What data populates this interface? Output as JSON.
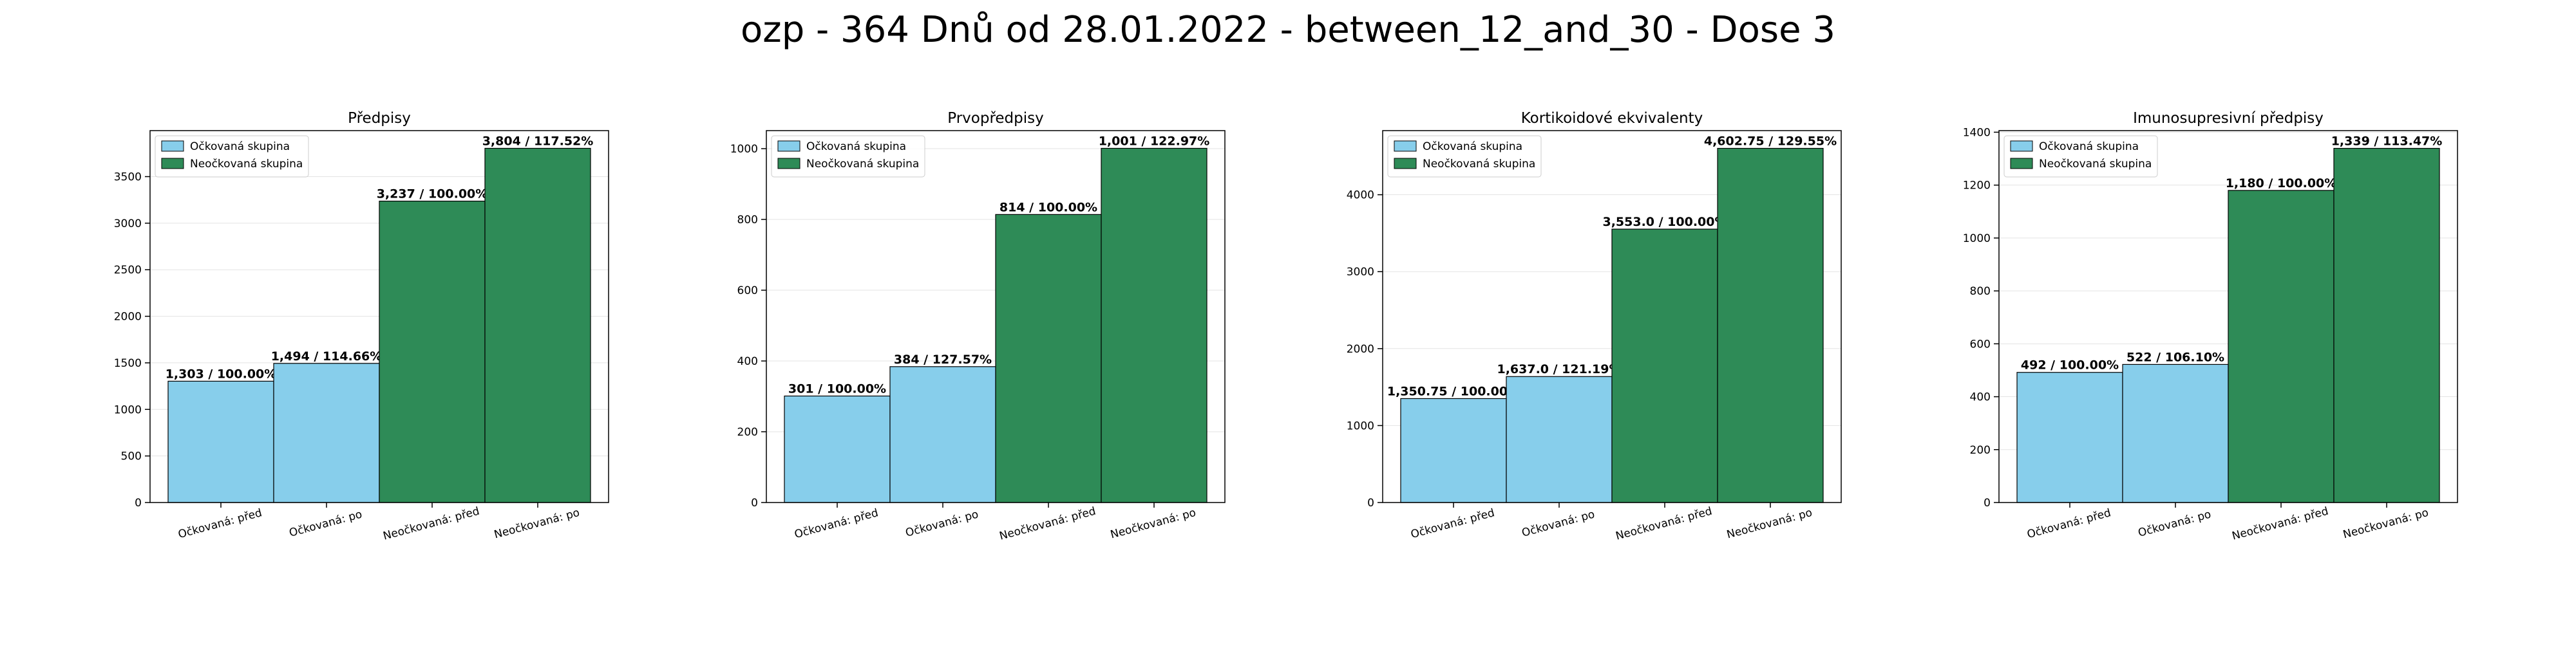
{
  "figure": {
    "title": "ozp - 364 Dnů od 28.01.2022 - between_12_and_30 - Dose 3"
  },
  "colors": {
    "vaccinated": "#87ceeb",
    "unvaccinated": "#2e8b57"
  },
  "chart_data": [
    {
      "type": "bar",
      "title": "Předpisy",
      "categories": [
        "Očkovaná: před",
        "Očkovaná: po",
        "Neočkovaná: před",
        "Neočkovaná: po"
      ],
      "values": [
        1303,
        1494,
        3237,
        3804
      ],
      "bar_labels": [
        "1,303 / 100.00%",
        "1,494 / 114.66%",
        "3,237 / 100.00%",
        "3,804 / 117.52%"
      ],
      "groups": [
        "vaccinated",
        "vaccinated",
        "unvaccinated",
        "unvaccinated"
      ],
      "legend": [
        "Očkovaná skupina",
        "Neočkovaná skupina"
      ],
      "legend_position": "upper-left",
      "ylim": [
        0,
        3994
      ],
      "yticks": [
        0,
        500,
        1000,
        1500,
        2000,
        2500,
        3000,
        3500
      ],
      "grid": "y"
    },
    {
      "type": "bar",
      "title": "Prvopředpisy",
      "categories": [
        "Očkovaná: před",
        "Očkovaná: po",
        "Neočkovaná: před",
        "Neočkovaná: po"
      ],
      "values": [
        301,
        384,
        814,
        1001
      ],
      "bar_labels": [
        "301 / 100.00%",
        "384 / 127.57%",
        "814 / 100.00%",
        "1,001 / 122.97%"
      ],
      "groups": [
        "vaccinated",
        "vaccinated",
        "unvaccinated",
        "unvaccinated"
      ],
      "legend": [
        "Očkovaná skupina",
        "Neočkovaná skupina"
      ],
      "legend_position": "upper-left",
      "ylim": [
        0,
        1051
      ],
      "yticks": [
        0,
        200,
        400,
        600,
        800,
        1000
      ],
      "grid": "y"
    },
    {
      "type": "bar",
      "title": "Kortikoidové ekvivalenty",
      "categories": [
        "Očkovaná: před",
        "Očkovaná: po",
        "Neočkovaná: před",
        "Neočkovaná: po"
      ],
      "values": [
        1350.75,
        1637.0,
        3553.0,
        4602.75
      ],
      "bar_labels": [
        "1,350.75 / 100.00%",
        "1,637.0 / 121.19%",
        "3,553.0 / 100.00%",
        "4,602.75 / 129.55%"
      ],
      "groups": [
        "vaccinated",
        "vaccinated",
        "unvaccinated",
        "unvaccinated"
      ],
      "legend": [
        "Očkovaná skupina",
        "Neočkovaná skupina"
      ],
      "legend_position": "upper-left",
      "ylim": [
        0,
        4833
      ],
      "yticks": [
        0,
        1000,
        2000,
        3000,
        4000
      ],
      "grid": "y"
    },
    {
      "type": "bar",
      "title": "Imunosupresivní předpisy",
      "categories": [
        "Očkovaná: před",
        "Očkovaná: po",
        "Neočkovaná: před",
        "Neočkovaná: po"
      ],
      "values": [
        492,
        522,
        1180,
        1339
      ],
      "bar_labels": [
        "492 / 100.00%",
        "522 / 106.10%",
        "1,180 / 100.00%",
        "1,339 / 113.47%"
      ],
      "groups": [
        "vaccinated",
        "vaccinated",
        "unvaccinated",
        "unvaccinated"
      ],
      "legend": [
        "Očkovaná skupina",
        "Neočkovaná skupina"
      ],
      "legend_position": "upper-left",
      "ylim": [
        0,
        1406
      ],
      "yticks": [
        0,
        200,
        400,
        600,
        800,
        1000,
        1200,
        1400
      ],
      "grid": "y"
    }
  ]
}
